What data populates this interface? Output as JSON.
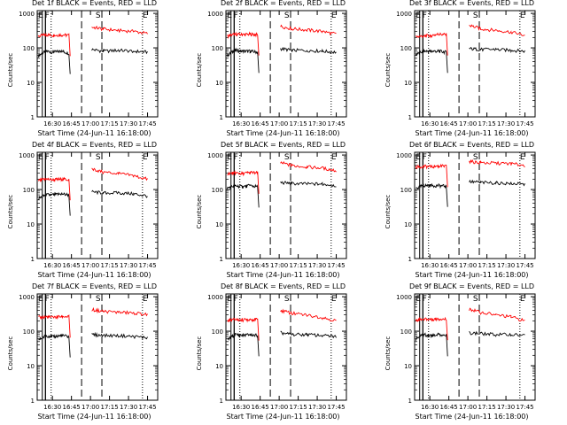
{
  "figure": {
    "xlabel": "Start Time (24-Jun-11 16:18:00)",
    "ylabel": "Counts/sec"
  },
  "chart_data": [
    {
      "type": "line",
      "title": "Det 1f BLACK = Events, RED = LLD",
      "xlabel": "Start Time (24-Jun-11 16:18:00)",
      "ylabel": "Counts/sec",
      "x_ticks": [
        "16:30",
        "16:45",
        "17:00",
        "17:15",
        "17:30",
        "17:45"
      ],
      "y_ticks": [
        "1",
        "10",
        "100",
        "1000"
      ],
      "y_scale": "log",
      "ylim": [
        1,
        1200
      ],
      "markers": [
        "E",
        "F",
        "S",
        "E"
      ],
      "series": [
        {
          "name": "Events",
          "color": "#000000",
          "values": [
            60,
            80,
            75,
            80,
            70,
            null,
            null,
            90,
            80,
            85,
            80,
            75
          ]
        },
        {
          "name": "LLD",
          "color": "#ff0000",
          "values": [
            220,
            240,
            230,
            240,
            230,
            null,
            null,
            400,
            350,
            320,
            300,
            260
          ]
        }
      ]
    },
    {
      "type": "line",
      "title": "Det 2f BLACK = Events, RED = LLD",
      "xlabel": "Start Time (24-Jun-11 16:18:00)",
      "ylabel": "Counts/sec",
      "x_ticks": [
        "16:30",
        "16:45",
        "17:00",
        "17:15",
        "17:30",
        "17:45"
      ],
      "y_ticks": [
        "1",
        "10",
        "100",
        "1000"
      ],
      "y_scale": "log",
      "ylim": [
        1,
        1200
      ],
      "markers": [
        "E",
        "F",
        "S",
        "E"
      ],
      "series": [
        {
          "name": "Events",
          "color": "#000000",
          "values": [
            60,
            85,
            80,
            80,
            75,
            null,
            null,
            95,
            85,
            85,
            80,
            75
          ]
        },
        {
          "name": "LLD",
          "color": "#ff0000",
          "values": [
            220,
            250,
            240,
            250,
            240,
            null,
            null,
            420,
            360,
            330,
            300,
            250
          ]
        }
      ]
    },
    {
      "type": "line",
      "title": "Det 3f BLACK = Events, RED = LLD",
      "xlabel": "Start Time (24-Jun-11 16:18:00)",
      "ylabel": "Counts/sec",
      "x_ticks": [
        "16:30",
        "16:45",
        "17:00",
        "17:15",
        "17:30",
        "17:45"
      ],
      "y_ticks": [
        "1",
        "10",
        "100",
        "1000"
      ],
      "y_scale": "log",
      "ylim": [
        1,
        1200
      ],
      "markers": [
        "E",
        "F",
        "S",
        "E"
      ],
      "series": [
        {
          "name": "Events",
          "color": "#000000",
          "values": [
            65,
            80,
            80,
            80,
            75,
            null,
            null,
            95,
            90,
            90,
            85,
            80
          ]
        },
        {
          "name": "LLD",
          "color": "#ff0000",
          "values": [
            210,
            220,
            230,
            250,
            240,
            null,
            null,
            450,
            360,
            320,
            290,
            230
          ]
        }
      ]
    },
    {
      "type": "line",
      "title": "Det 4f BLACK = Events, RED = LLD",
      "xlabel": "Start Time (24-Jun-11 16:18:00)",
      "ylabel": "Counts/sec",
      "x_ticks": [
        "16:30",
        "16:45",
        "17:00",
        "17:15",
        "17:30",
        "17:45"
      ],
      "y_ticks": [
        "1",
        "10",
        "100",
        "1000"
      ],
      "y_scale": "log",
      "ylim": [
        1,
        1200
      ],
      "markers": [
        "E",
        "F",
        "S",
        "E"
      ],
      "series": [
        {
          "name": "Events",
          "color": "#000000",
          "values": [
            55,
            70,
            70,
            75,
            70,
            null,
            null,
            85,
            80,
            80,
            75,
            65
          ]
        },
        {
          "name": "LLD",
          "color": "#ff0000",
          "values": [
            180,
            200,
            190,
            200,
            195,
            null,
            null,
            400,
            320,
            290,
            250,
            200
          ]
        }
      ]
    },
    {
      "type": "line",
      "title": "Det 5f BLACK = Events, RED = LLD",
      "xlabel": "Start Time (24-Jun-11 16:18:00)",
      "ylabel": "Counts/sec",
      "x_ticks": [
        "16:30",
        "16:45",
        "17:00",
        "17:15",
        "17:30",
        "17:45"
      ],
      "y_ticks": [
        "1",
        "10",
        "100",
        "1000"
      ],
      "y_scale": "log",
      "ylim": [
        1,
        1200
      ],
      "markers": [
        "E",
        "F",
        "S",
        "E"
      ],
      "series": [
        {
          "name": "Events",
          "color": "#000000",
          "values": [
            110,
            130,
            120,
            130,
            120,
            null,
            null,
            160,
            150,
            145,
            145,
            130
          ]
        },
        {
          "name": "LLD",
          "color": "#ff0000",
          "values": [
            290,
            300,
            290,
            310,
            300,
            null,
            null,
            600,
            500,
            450,
            420,
            350
          ]
        }
      ]
    },
    {
      "type": "line",
      "title": "Det 6f BLACK = Events, RED = LLD",
      "xlabel": "Start Time (24-Jun-11 16:18:00)",
      "ylabel": "Counts/sec",
      "x_ticks": [
        "16:30",
        "16:45",
        "17:00",
        "17:15",
        "17:30",
        "17:45"
      ],
      "y_ticks": [
        "1",
        "10",
        "100",
        "1000"
      ],
      "y_scale": "log",
      "ylim": [
        1,
        1200
      ],
      "markers": [
        "E",
        "F",
        "S",
        "E"
      ],
      "series": [
        {
          "name": "Events",
          "color": "#000000",
          "values": [
            110,
            130,
            130,
            130,
            125,
            null,
            null,
            170,
            160,
            155,
            150,
            140
          ]
        },
        {
          "name": "LLD",
          "color": "#ff0000",
          "values": [
            450,
            470,
            460,
            480,
            470,
            null,
            null,
            650,
            600,
            580,
            560,
            500
          ]
        }
      ]
    },
    {
      "type": "line",
      "title": "Det 7f BLACK = Events, RED = LLD",
      "xlabel": "Start Time (24-Jun-11 16:18:00)",
      "ylabel": "Counts/sec",
      "x_ticks": [
        "16:30",
        "16:45",
        "17:00",
        "17:15",
        "17:30",
        "17:45"
      ],
      "y_ticks": [
        "1",
        "10",
        "100",
        "1000"
      ],
      "y_scale": "log",
      "ylim": [
        1,
        1200
      ],
      "markers": [
        "E",
        "F",
        "S",
        "E"
      ],
      "series": [
        {
          "name": "Events",
          "color": "#000000",
          "values": [
            55,
            75,
            70,
            75,
            70,
            null,
            null,
            80,
            75,
            75,
            70,
            65
          ]
        },
        {
          "name": "LLD",
          "color": "#ff0000",
          "values": [
            250,
            260,
            250,
            270,
            260,
            null,
            null,
            420,
            380,
            350,
            340,
            300
          ]
        }
      ]
    },
    {
      "type": "line",
      "title": "Det 8f BLACK = Events, RED = LLD",
      "xlabel": "Start Time (24-Jun-11 16:18:00)",
      "ylabel": "Counts/sec",
      "x_ticks": [
        "16:30",
        "16:45",
        "17:00",
        "17:15",
        "17:30",
        "17:45"
      ],
      "y_ticks": [
        "1",
        "10",
        "100",
        "1000"
      ],
      "y_scale": "log",
      "ylim": [
        1,
        1200
      ],
      "markers": [
        "E",
        "F",
        "S",
        "E"
      ],
      "series": [
        {
          "name": "Events",
          "color": "#000000",
          "values": [
            55,
            80,
            75,
            80,
            75,
            null,
            null,
            90,
            80,
            80,
            75,
            70
          ]
        },
        {
          "name": "LLD",
          "color": "#ff0000",
          "values": [
            200,
            220,
            210,
            220,
            215,
            null,
            null,
            400,
            330,
            290,
            250,
            200
          ]
        }
      ]
    },
    {
      "type": "line",
      "title": "Det 9f BLACK = Events, RED = LLD",
      "xlabel": "Start Time (24-Jun-11 16:18:00)",
      "ylabel": "Counts/sec",
      "x_ticks": [
        "16:30",
        "16:45",
        "17:00",
        "17:15",
        "17:30",
        "17:45"
      ],
      "y_ticks": [
        "1",
        "10",
        "100",
        "1000"
      ],
      "y_scale": "log",
      "ylim": [
        1,
        1200
      ],
      "markers": [
        "E",
        "F",
        "S",
        "E"
      ],
      "series": [
        {
          "name": "Events",
          "color": "#000000",
          "values": [
            60,
            80,
            75,
            80,
            75,
            null,
            null,
            90,
            85,
            80,
            80,
            75
          ]
        },
        {
          "name": "LLD",
          "color": "#ff0000",
          "values": [
            210,
            230,
            220,
            230,
            220,
            null,
            null,
            440,
            350,
            300,
            260,
            200
          ]
        }
      ]
    }
  ]
}
